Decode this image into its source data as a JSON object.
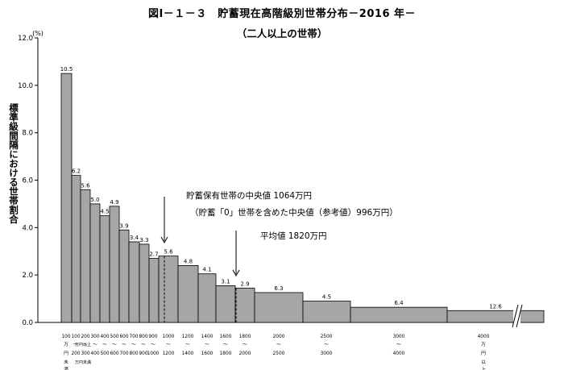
{
  "title": "図Ⅰ－１－３　貯蓄現在高階級別世帯分布－2016 年－",
  "subtitle": "（二人以上の世帯）",
  "chart_data": {
    "type": "bar",
    "ylabel": "標準級間隔における世帯割合",
    "yunit": "(%)",
    "ylim": [
      0,
      12
    ],
    "yticks": [
      "0.0",
      "2.0",
      "4.0",
      "6.0",
      "8.0",
      "10.0",
      "12.0"
    ],
    "grid": false,
    "categories": [
      "100万円未満",
      "100～200",
      "200～300",
      "300～400",
      "400～500",
      "500～600",
      "600～700",
      "700～800",
      "800～900",
      "900～1000",
      "1000～1200",
      "1200～1400",
      "1400～1600",
      "1600～1800",
      "1800～2000",
      "2000～2500",
      "2500～3000",
      "3000～4000",
      "4000万円以上"
    ],
    "values": [
      10.5,
      6.2,
      5.6,
      5.0,
      4.5,
      4.9,
      3.9,
      3.4,
      3.3,
      2.7,
      5.6,
      4.8,
      4.1,
      3.1,
      2.9,
      6.3,
      4.5,
      6.4,
      12.6
    ],
    "heights": [
      10.5,
      6.2,
      5.6,
      5.0,
      4.5,
      4.9,
      3.9,
      3.4,
      3.3,
      2.7,
      2.8,
      2.4,
      2.05,
      1.55,
      1.45,
      1.26,
      0.9,
      0.64,
      0.5
    ],
    "bar_color": "#a6a6a6",
    "x_labels": {
      "row1": [
        "100",
        "100",
        "200",
        "300",
        "400",
        "500",
        "600",
        "700",
        "800",
        "900",
        "1000",
        "1200",
        "1400",
        "1600",
        "1800",
        "2000",
        "2500",
        "3000",
        "4000"
      ],
      "row2": [
        "万",
        "～",
        "～",
        "～",
        "～",
        "～",
        "～",
        "～",
        "～",
        "～",
        "～",
        "～",
        "～",
        "～",
        "～",
        "～",
        "～",
        "～",
        "万"
      ],
      "row3": [
        "円",
        "200",
        "300",
        "400",
        "500",
        "600",
        "700",
        "800",
        "900",
        "1000",
        "1200",
        "1400",
        "1600",
        "1800",
        "2000",
        "2500",
        "3000",
        "4000",
        "円"
      ],
      "row4": [
        "未",
        "",
        "",
        "",
        "",
        "",
        "",
        "",
        "",
        "",
        "",
        "",
        "",
        "",
        "",
        "",
        "",
        "",
        "以"
      ],
      "row5": [
        "満",
        "",
        "",
        "",
        "",
        "",
        "",
        "",
        "",
        "",
        "",
        "",
        "",
        "",
        "",
        "",
        "",
        "",
        "上"
      ],
      "top_note": "万円以上",
      "bottom_note": "万円未満"
    },
    "annotations": {
      "median": "貯蓄保有世帯の中央値 1064万円",
      "median_note": "（貯蓄「0」世帯を含めた中央値（参考値）996万円）",
      "mean": "平均値 1820万円"
    }
  }
}
